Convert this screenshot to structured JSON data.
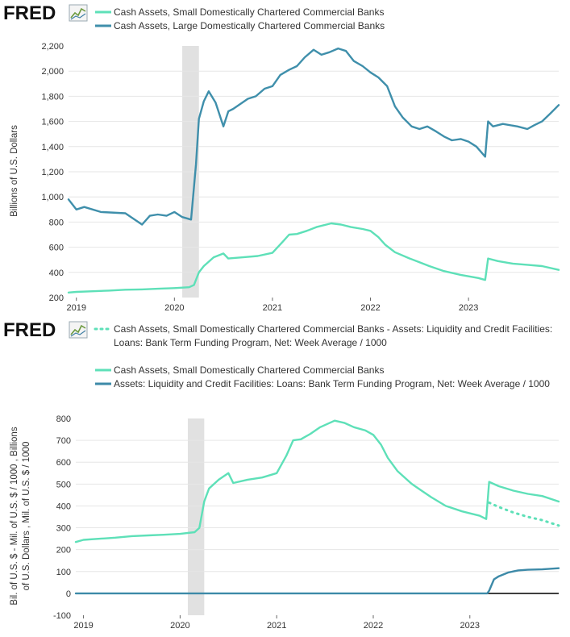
{
  "logo": "FRED",
  "colors": {
    "small": "#5ee0b8",
    "large": "#3f8fab",
    "btfp": "#3d8aa8",
    "recession": "#e1e1e1",
    "grid": "#e6e6e6",
    "plot_bg": "#ffffff",
    "frame_bg": "#ecf0f3",
    "zero_line": "#111111"
  },
  "chart_data": [
    {
      "type": "line",
      "legend": [
        "Cash Assets, Small Domestically Chartered Commercial Banks",
        "Cash Assets, Large Domestically Chartered Commercial Banks"
      ],
      "ylabel": "Billions of U.S. Dollars",
      "xlabel": "",
      "ylim": [
        200,
        2200
      ],
      "yticks": [
        "200",
        "400",
        "600",
        "800",
        "1,000",
        "1,200",
        "1,400",
        "1,600",
        "1,800",
        "2,000",
        "2,200"
      ],
      "xlim": [
        2018.92,
        2023.92
      ],
      "xticks": [
        "2019",
        "2020",
        "2021",
        "2022",
        "2023"
      ],
      "grid": "horizontal",
      "recession": [
        2020.08,
        2020.25
      ],
      "series": [
        {
          "name": "Cash Assets, Small Domestically Chartered Commercial Banks",
          "x": [
            2018.92,
            2019.0,
            2019.17,
            2019.33,
            2019.5,
            2019.67,
            2019.83,
            2020.0,
            2020.15,
            2020.2,
            2020.25,
            2020.3,
            2020.4,
            2020.5,
            2020.55,
            2020.7,
            2020.85,
            2021.0,
            2021.1,
            2021.17,
            2021.25,
            2021.35,
            2021.45,
            2021.6,
            2021.7,
            2021.8,
            2021.92,
            2022.0,
            2022.08,
            2022.15,
            2022.25,
            2022.4,
            2022.5,
            2022.6,
            2022.75,
            2022.92,
            2023.1,
            2023.17,
            2023.2,
            2023.3,
            2023.45,
            2023.6,
            2023.75,
            2023.92
          ],
          "values": [
            240,
            245,
            250,
            255,
            262,
            265,
            270,
            275,
            282,
            300,
            400,
            450,
            520,
            550,
            510,
            520,
            530,
            555,
            640,
            700,
            705,
            730,
            760,
            790,
            780,
            760,
            745,
            730,
            680,
            620,
            560,
            510,
            480,
            450,
            410,
            380,
            355,
            340,
            510,
            490,
            470,
            460,
            450,
            420
          ]
        },
        {
          "name": "Cash Assets, Large Domestically Chartered Commercial Banks",
          "x": [
            2018.92,
            2019.0,
            2019.08,
            2019.25,
            2019.5,
            2019.67,
            2019.75,
            2019.83,
            2019.92,
            2020.0,
            2020.08,
            2020.17,
            2020.22,
            2020.25,
            2020.3,
            2020.35,
            2020.42,
            2020.5,
            2020.55,
            2020.6,
            2020.75,
            2020.83,
            2020.92,
            2021.0,
            2021.08,
            2021.17,
            2021.25,
            2021.33,
            2021.42,
            2021.5,
            2021.58,
            2021.67,
            2021.75,
            2021.83,
            2021.92,
            2022.0,
            2022.08,
            2022.17,
            2022.25,
            2022.33,
            2022.42,
            2022.5,
            2022.58,
            2022.67,
            2022.75,
            2022.83,
            2022.92,
            2023.0,
            2023.08,
            2023.17,
            2023.2,
            2023.25,
            2023.35,
            2023.5,
            2023.6,
            2023.67,
            2023.75,
            2023.83,
            2023.92
          ],
          "values": [
            980,
            900,
            920,
            880,
            870,
            780,
            850,
            860,
            850,
            880,
            840,
            820,
            1260,
            1620,
            1760,
            1840,
            1750,
            1560,
            1680,
            1700,
            1780,
            1800,
            1860,
            1880,
            1970,
            2010,
            2040,
            2110,
            2170,
            2130,
            2150,
            2180,
            2160,
            2080,
            2040,
            1990,
            1950,
            1880,
            1720,
            1630,
            1560,
            1540,
            1560,
            1520,
            1480,
            1450,
            1460,
            1440,
            1400,
            1320,
            1600,
            1560,
            1580,
            1560,
            1540,
            1570,
            1600,
            1660,
            1730
          ]
        }
      ]
    },
    {
      "type": "line",
      "legend_formula": "Cash Assets, Small Domestically Chartered Commercial Banks - Assets: Liquidity and Credit Facilities: Loans: Bank Term Funding Program, Net: Week Average / 1000",
      "legend_formula_lines": [
        "Cash Assets, Small Domestically Chartered Commercial Banks - Assets: Liquidity and Credit Facilities:",
        "Loans: Bank Term Funding Program, Net: Week Average / 1000"
      ],
      "legend": [
        "Cash Assets, Small Domestically Chartered Commercial Banks",
        "Assets: Liquidity and Credit Facilities: Loans: Bank Term Funding Program, Net: Week Average / 1000"
      ],
      "ylabel_lines": [
        "Bil. of U.S. $ - Mil. of U.S. $ / 1000 , Billions",
        "of U.S. Dollars , Mil. of U.S. $ / 1000"
      ],
      "xlabel": "",
      "ylim": [
        -100,
        800
      ],
      "yticks": [
        "-100",
        "0",
        "100",
        "200",
        "300",
        "400",
        "500",
        "600",
        "700",
        "800"
      ],
      "xlim": [
        2018.92,
        2023.92
      ],
      "xticks": [
        "2019",
        "2020",
        "2021",
        "2022",
        "2023"
      ],
      "grid": "horizontal",
      "recession": [
        2020.08,
        2020.25
      ],
      "series": [
        {
          "name": "Cash Assets, Small Domestically Chartered Commercial Banks - Assets: Liquidity and Credit Facilities: Loans: Bank Term Funding Program, Net: Week Average / 1000",
          "style": "dotted",
          "x": [
            2023.2,
            2023.3,
            2023.45,
            2023.6,
            2023.75,
            2023.92
          ],
          "values": [
            415,
            395,
            370,
            350,
            335,
            310
          ]
        },
        {
          "name": "Cash Assets, Small Domestically Chartered Commercial Banks",
          "style": "solid",
          "x": [
            2018.92,
            2019.0,
            2019.17,
            2019.33,
            2019.5,
            2019.67,
            2019.83,
            2020.0,
            2020.15,
            2020.2,
            2020.25,
            2020.3,
            2020.4,
            2020.5,
            2020.55,
            2020.7,
            2020.85,
            2021.0,
            2021.1,
            2021.17,
            2021.25,
            2021.35,
            2021.45,
            2021.6,
            2021.7,
            2021.8,
            2021.92,
            2022.0,
            2022.08,
            2022.15,
            2022.25,
            2022.4,
            2022.5,
            2022.6,
            2022.75,
            2022.92,
            2023.1,
            2023.17,
            2023.2,
            2023.3,
            2023.45,
            2023.6,
            2023.75,
            2023.92
          ],
          "values": [
            235,
            245,
            250,
            255,
            262,
            265,
            268,
            272,
            280,
            300,
            420,
            480,
            520,
            550,
            505,
            520,
            530,
            550,
            630,
            700,
            705,
            730,
            760,
            790,
            780,
            760,
            745,
            725,
            680,
            620,
            560,
            500,
            470,
            440,
            400,
            375,
            355,
            340,
            510,
            490,
            470,
            455,
            445,
            420
          ]
        },
        {
          "name": "Assets: Liquidity and Credit Facilities: Loans: Bank Term Funding Program, Net: Week Average / 1000",
          "style": "solid",
          "x": [
            2018.92,
            2023.18,
            2023.2,
            2023.25,
            2023.3,
            2023.4,
            2023.5,
            2023.6,
            2023.75,
            2023.92
          ],
          "values": [
            0,
            0,
            12,
            64,
            78,
            96,
            105,
            108,
            110,
            115
          ]
        }
      ]
    }
  ]
}
